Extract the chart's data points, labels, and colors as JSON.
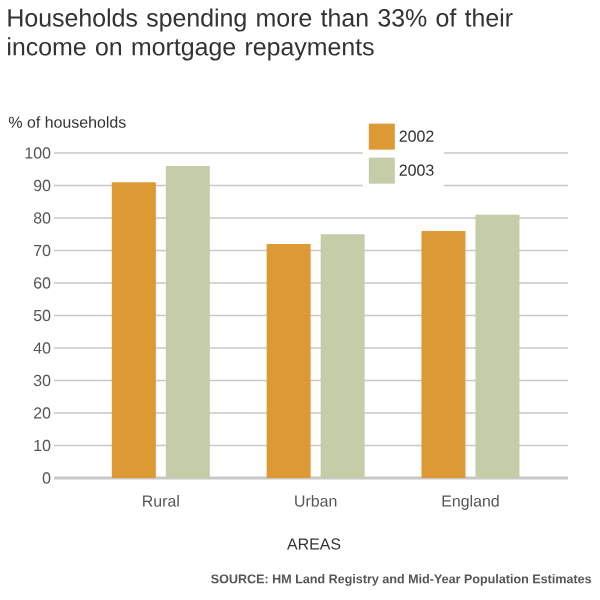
{
  "chart_data": {
    "type": "bar",
    "title": "Households spending more than 33% of their income on mortgage repayments",
    "ylabel": "% of households",
    "xlabel": "AREAS",
    "categories": [
      "Rural",
      "Urban",
      "England"
    ],
    "series": [
      {
        "name": "2002",
        "color": "#dd9933",
        "values": [
          91,
          72,
          76
        ]
      },
      {
        "name": "2003",
        "color": "#c5cda8",
        "values": [
          96,
          75,
          81
        ]
      }
    ],
    "ylim": [
      0,
      100
    ],
    "yticks": [
      0,
      10,
      20,
      30,
      40,
      50,
      60,
      70,
      80,
      90,
      100
    ],
    "grid": "y",
    "legend": "top right",
    "annotations": [
      "SOURCE: HM Land Registry and Mid-Year Population Estimates"
    ]
  }
}
